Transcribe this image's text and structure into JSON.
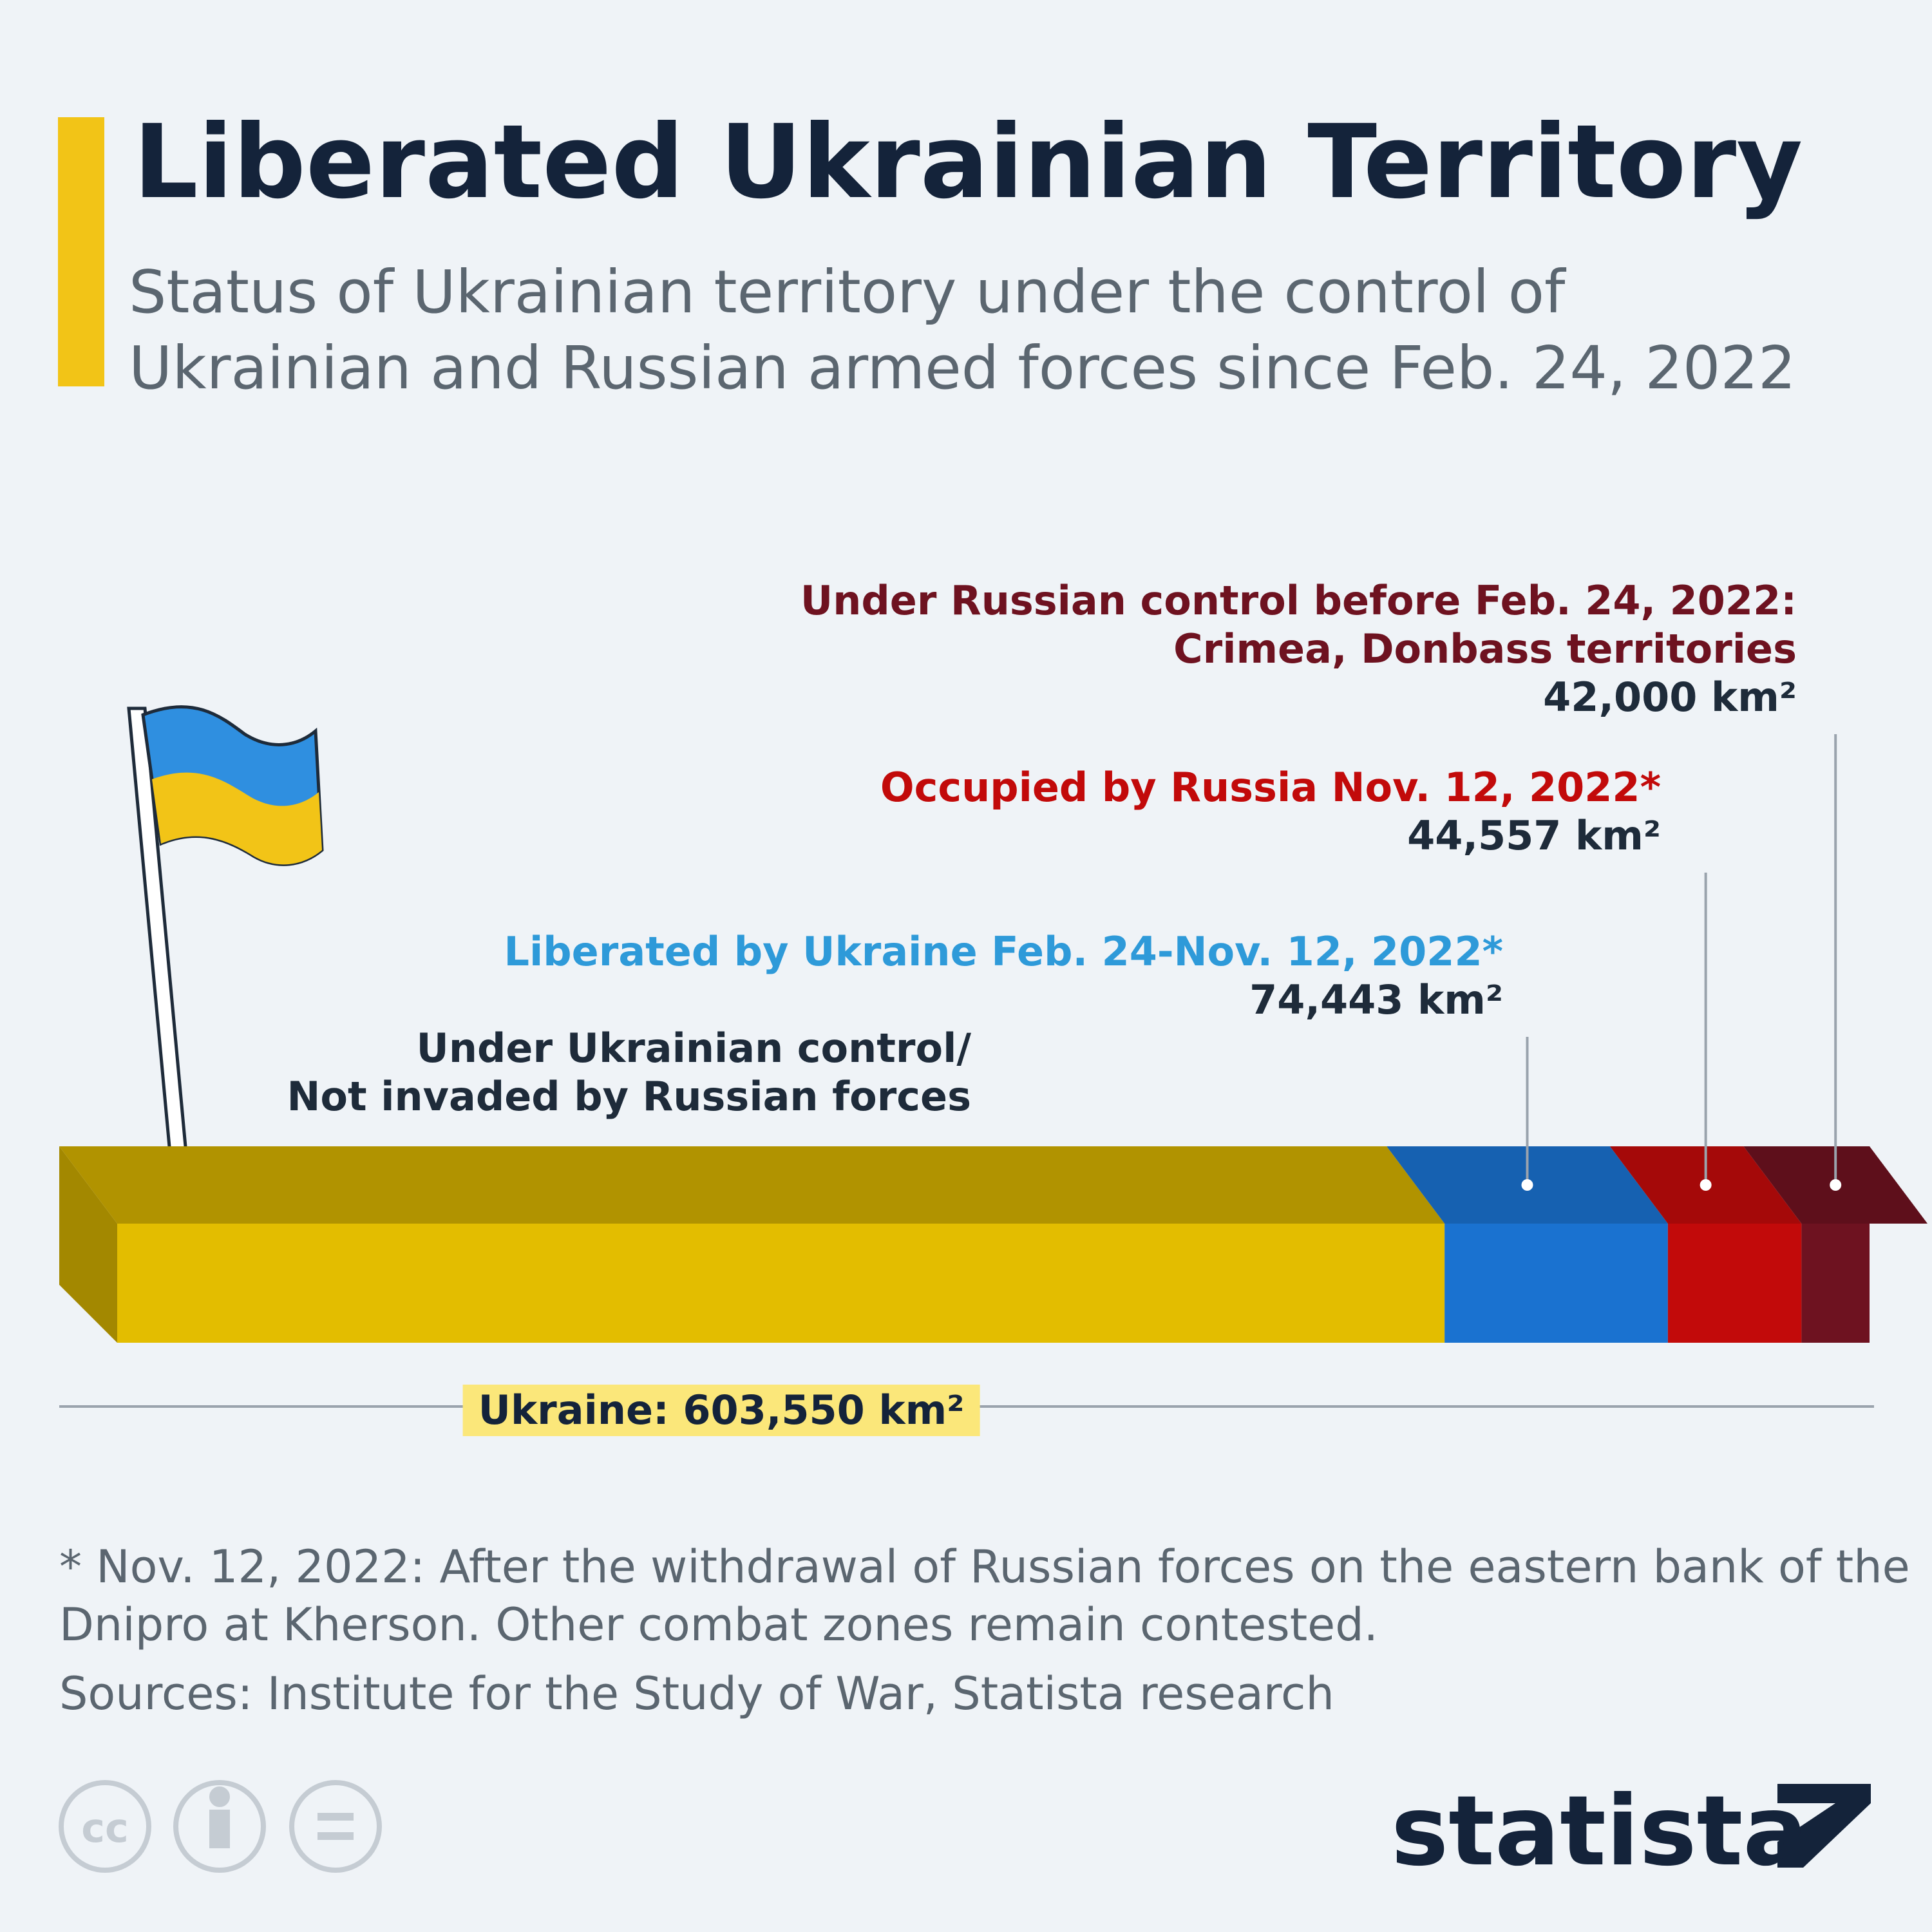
{
  "chart_data": {
    "type": "stacked_bar",
    "title": "Liberated Ukrainian Territory",
    "subtitle": "Status of Ukrainian territory under the control of\nUkrainian and Russian armed forces since Feb. 24, 2022",
    "series": [
      {
        "name": "Under Ukrainian control/\nNot invaded by Russian forces",
        "color": "#e3bd00",
        "values": [
          442550
        ]
      },
      {
        "name": "Liberated by Ukraine Feb. 24-Nov. 12, 2022*",
        "color": "#1a72d0",
        "values": [
          74443
        ],
        "value_labels": [
          "74,443 km²"
        ]
      },
      {
        "name": "Occupied by Russia Nov. 12, 2022*",
        "color": "#c20a0a",
        "values": [
          44557
        ],
        "value_labels": [
          "44,557 km²"
        ]
      },
      {
        "name": "Under Russian control before Feb. 24, 2022:\nCrimea, Donbass territories",
        "color": "#6e1220",
        "values": [
          42000
        ],
        "value_labels": [
          "42,000 km²"
        ]
      }
    ],
    "xlim": [
      0,
      603550
    ],
    "total_label": "Ukraine: 603,550 km²",
    "footnote": "* Nov. 12, 2022: After the withdrawal of Russian forces on the eastern bank of the\n   Dnipro at Kherson. Other combat zones remain contested.",
    "source": "Sources: Institute for the Study of War, Statista research",
    "brand": "statista"
  }
}
